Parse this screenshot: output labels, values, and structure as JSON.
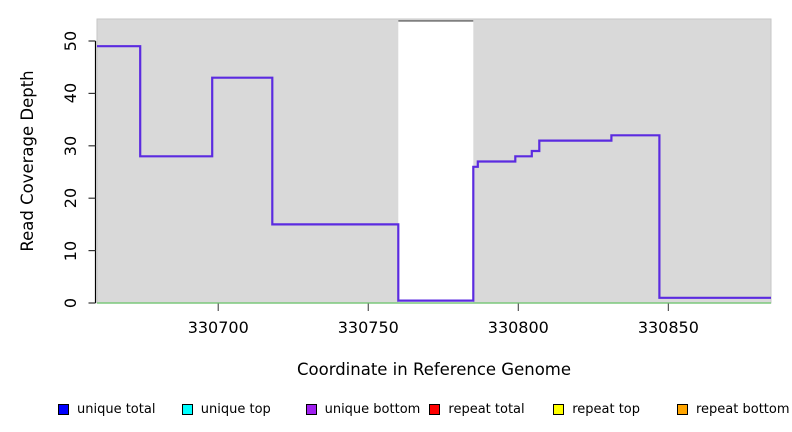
{
  "chart_data": {
    "type": "line",
    "subtype": "step-coverage",
    "title": "",
    "xlabel": "Coordinate in Reference Genome",
    "ylabel": "Read Coverage Depth",
    "xlim": [
      330659.6,
      330884.2
    ],
    "ylim": [
      0,
      54.2
    ],
    "grid": "off",
    "plot_background_color": "#d9d9d9",
    "x_ticks": [
      {
        "value": 330700,
        "label": "330700"
      },
      {
        "value": 330750,
        "label": "330750"
      },
      {
        "value": 330800,
        "label": "330800"
      },
      {
        "value": 330850,
        "label": "330850"
      }
    ],
    "y_ticks": [
      {
        "value": 0,
        "label": "0"
      },
      {
        "value": 10,
        "label": "10"
      },
      {
        "value": 20,
        "label": "20"
      },
      {
        "value": 30,
        "label": "30"
      },
      {
        "value": 40,
        "label": "40"
      },
      {
        "value": 50,
        "label": "50"
      }
    ],
    "no_data_gap": {
      "from": 330760,
      "to": 330785,
      "fill": "#ffffff",
      "top_line_color": "#808080"
    },
    "series": [
      {
        "name": "coverage depth step line",
        "color": "#5b2be0",
        "segments": [
          {
            "start": 330659.6,
            "end": 330674,
            "depth": 49
          },
          {
            "start": 330674,
            "end": 330698,
            "depth": 28
          },
          {
            "start": 330698,
            "end": 330718,
            "depth": 43
          },
          {
            "start": 330718,
            "end": 330760,
            "depth": 15
          },
          {
            "start": 330760,
            "end": 330785,
            "depth": 0
          },
          {
            "start": 330785,
            "end": 330786.5,
            "depth": 26
          },
          {
            "start": 330786.5,
            "end": 330799,
            "depth": 27
          },
          {
            "start": 330799,
            "end": 330804.5,
            "depth": 28
          },
          {
            "start": 330804.5,
            "end": 330807,
            "depth": 29
          },
          {
            "start": 330807,
            "end": 330831,
            "depth": 31
          },
          {
            "start": 330831,
            "end": 330847,
            "depth": 32
          },
          {
            "start": 330847,
            "end": 330884.2,
            "depth": 1
          }
        ]
      }
    ],
    "baseline": {
      "depth": 0,
      "color": "#7cc87c"
    },
    "legend": {
      "position": "bottom",
      "items": [
        {
          "label": "unique total",
          "color": "#0000ff"
        },
        {
          "label": "unique top",
          "color": "#00ffff"
        },
        {
          "label": "unique bottom",
          "color": "#a020f0"
        },
        {
          "label": "repeat total",
          "color": "#ff0000"
        },
        {
          "label": "repeat top",
          "color": "#ffff00"
        },
        {
          "label": "repeat bottom",
          "color": "#ffa500"
        }
      ]
    }
  }
}
